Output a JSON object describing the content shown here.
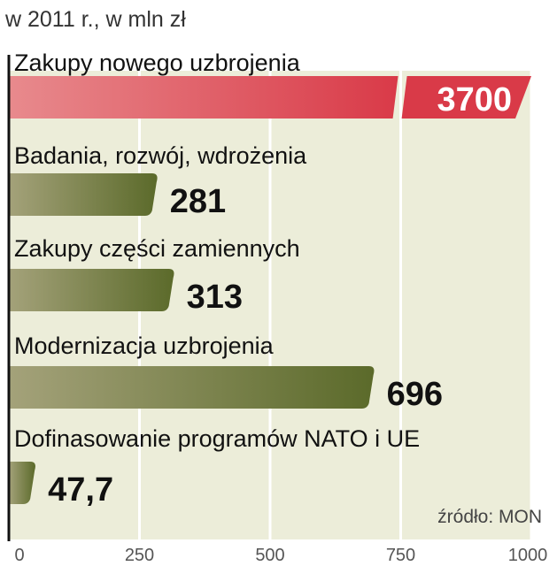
{
  "chart_data": {
    "type": "bar",
    "orientation": "horizontal",
    "subtitle": "w 2011 r., w mln zł",
    "categories": [
      "Zakupy nowego uzbrojenia",
      "Badania, rozwój, wdrożenia",
      "Zakupy części zamiennych",
      "Modernizacja uzbrojenia",
      "Dofinasowanie programów NATO i UE"
    ],
    "values": [
      3700,
      281,
      313,
      696,
      47.7
    ],
    "value_labels": [
      "3700",
      "281",
      "313",
      "696",
      "47,7"
    ],
    "axis_break": {
      "category": "Zakupy nowego uzbrojenia",
      "note": "bar truncated with a break; value exceeds axis"
    },
    "xlim": [
      0,
      1000
    ],
    "x_ticks": [
      "0",
      "250",
      "500",
      "750",
      "1000"
    ],
    "grid": true,
    "source": "źródło: MON",
    "colors": {
      "highlight_bar": "#d93a48",
      "highlight_bar_light": "#e88a8d",
      "bar": "#5b6a2a",
      "bar_light": "#a4a27a",
      "plot_background": "#ecedd9",
      "gridline": "#ffffff",
      "axis": "#111111"
    }
  }
}
